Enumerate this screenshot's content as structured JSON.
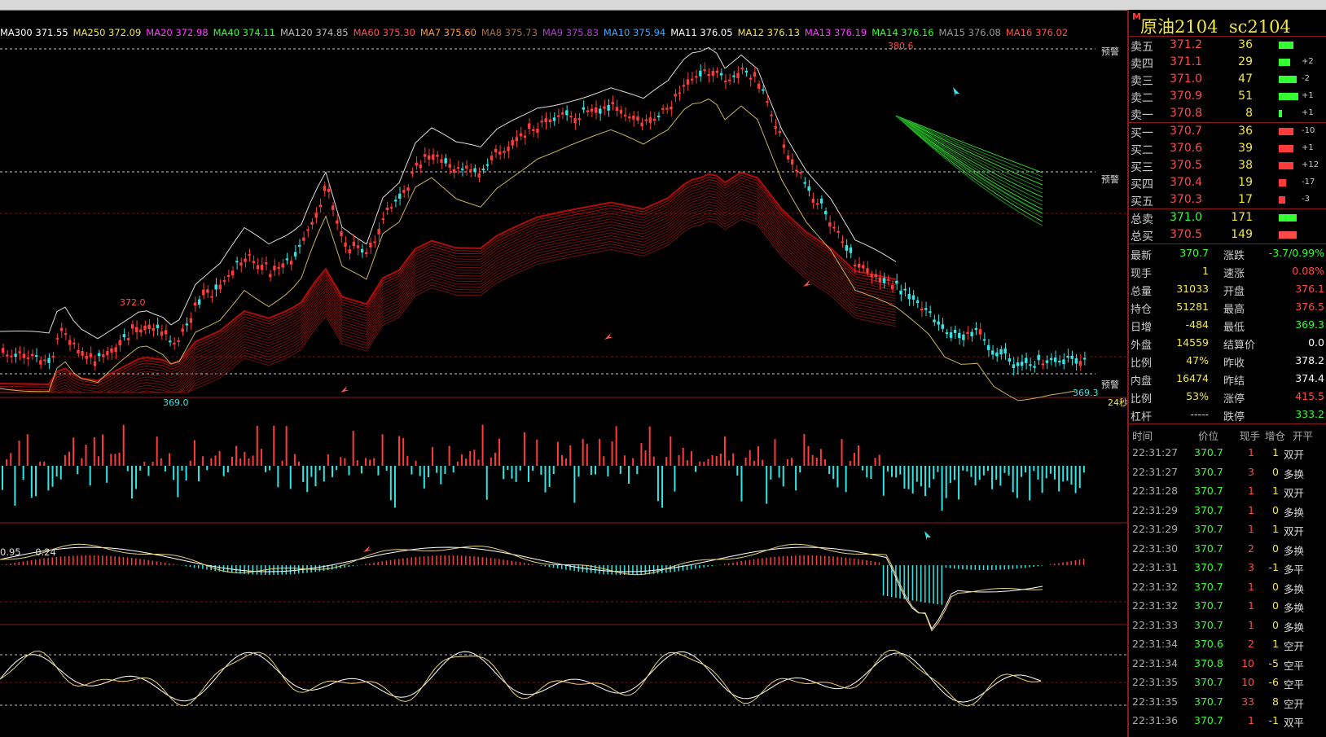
{
  "instrument": {
    "marker": "M",
    "name": "原油2104",
    "code": "sc2104"
  },
  "ma_legend": [
    {
      "label": "MA300",
      "value": "371.55",
      "color": "#ffffff"
    },
    {
      "label": "MA250",
      "value": "372.09",
      "color": "#f4e842"
    },
    {
      "label": "MA20",
      "value": "372.98",
      "color": "#ff3bff"
    },
    {
      "label": "MA40",
      "value": "374.11",
      "color": "#33ff33"
    },
    {
      "label": "MA120",
      "value": "374.85",
      "color": "#bbbbbb"
    },
    {
      "label": "MA60",
      "value": "375.30",
      "color": "#ff5050"
    },
    {
      "label": "MA7",
      "value": "375.60",
      "color": "#ff9933"
    },
    {
      "label": "MA8",
      "value": "375.73",
      "color": "#a07040"
    },
    {
      "label": "MA9",
      "value": "375.83",
      "color": "#b040d0"
    },
    {
      "label": "MA10",
      "value": "375.94",
      "color": "#33aaff"
    },
    {
      "label": "MA11",
      "value": "376.05",
      "color": "#ffffff"
    },
    {
      "label": "MA12",
      "value": "376.13",
      "color": "#f4e842"
    },
    {
      "label": "MA13",
      "value": "376.19",
      "color": "#ff3bff"
    },
    {
      "label": "MA14",
      "value": "376.16",
      "color": "#33ff33"
    },
    {
      "label": "MA15",
      "value": "376.08",
      "color": "#999999"
    },
    {
      "label": "MA16",
      "value": "376.02",
      "color": "#ff5050"
    }
  ],
  "price_marks": {
    "high": "380.6",
    "low_left": "369.0",
    "peak_left": "372.0",
    "last_low": "369.3"
  },
  "alert_label": "预警",
  "timer_label": "24秒",
  "macd_values": [
    "0.95",
    "0.24"
  ],
  "orderbook": {
    "asks": [
      {
        "label": "卖五",
        "price": "371.2",
        "vol": "36",
        "delta": "",
        "bar": 18
      },
      {
        "label": "卖四",
        "price": "371.1",
        "vol": "29",
        "delta": "+2",
        "bar": 14
      },
      {
        "label": "卖三",
        "price": "371.0",
        "vol": "47",
        "delta": "-2",
        "bar": 22
      },
      {
        "label": "卖二",
        "price": "370.9",
        "vol": "51",
        "delta": "+1",
        "bar": 24
      },
      {
        "label": "卖一",
        "price": "370.8",
        "vol": "8",
        "delta": "+1",
        "bar": 4
      }
    ],
    "bids": [
      {
        "label": "买一",
        "price": "370.7",
        "vol": "36",
        "delta": "-10",
        "bar": 18
      },
      {
        "label": "买二",
        "price": "370.6",
        "vol": "39",
        "delta": "+1",
        "bar": 18
      },
      {
        "label": "买三",
        "price": "370.5",
        "vol": "38",
        "delta": "+12",
        "bar": 18
      },
      {
        "label": "买四",
        "price": "370.4",
        "vol": "19",
        "delta": "-17",
        "bar": 9
      },
      {
        "label": "买五",
        "price": "370.3",
        "vol": "17",
        "delta": "-3",
        "bar": 8
      }
    ],
    "totals": [
      {
        "label": "总卖",
        "price": "371.0",
        "vol": "171",
        "color": "#33ff33"
      },
      {
        "label": "总买",
        "price": "370.5",
        "vol": "149",
        "color": "#ff4a4a"
      }
    ]
  },
  "stats": [
    {
      "k1": "最新",
      "v1": "370.7",
      "c1": "#33ff33",
      "k2": "涨跌",
      "v2": "-3.7/0.99%",
      "c2": "#33ff33"
    },
    {
      "k1": "现手",
      "v1": "1",
      "c1": "#f4e842",
      "k2": "速涨",
      "v2": "0.08%",
      "c2": "#ff4a4a"
    },
    {
      "k1": "总量",
      "v1": "31033",
      "c1": "#f4e842",
      "k2": "开盘",
      "v2": "376.1",
      "c2": "#ff4a4a"
    },
    {
      "k1": "持仓",
      "v1": "51281",
      "c1": "#f4e842",
      "k2": "最高",
      "v2": "376.5",
      "c2": "#ff4a4a"
    },
    {
      "k1": "日增",
      "v1": "-484",
      "c1": "#f4e842",
      "k2": "最低",
      "v2": "369.3",
      "c2": "#33ff33"
    },
    {
      "k1": "外盘",
      "v1": "14559",
      "c1": "#f4e842",
      "k2": "结算价",
      "v2": "0.0",
      "c2": "#ffffff"
    },
    {
      "k1": "比例",
      "v1": "47%",
      "c1": "#f4e842",
      "k2": "昨收",
      "v2": "378.2",
      "c2": "#ffffff"
    },
    {
      "k1": "内盘",
      "v1": "16474",
      "c1": "#f4e842",
      "k2": "昨结",
      "v2": "374.4",
      "c2": "#ffffff"
    },
    {
      "k1": "比例",
      "v1": "53%",
      "c1": "#f4e842",
      "k2": "涨停",
      "v2": "415.5",
      "c2": "#ff4a4a"
    },
    {
      "k1": "杠杆",
      "v1": "-----",
      "c1": "#f4e842",
      "k2": "跌停",
      "v2": "333.2",
      "c2": "#33ff33"
    }
  ],
  "trade_header": {
    "time": "时间",
    "price": "价位",
    "qty": "现手",
    "oi": "增仓",
    "type": "开平"
  },
  "trades": [
    {
      "time": "22:31:27",
      "price": "370.7",
      "qty": "1",
      "oi": "1",
      "type": "双开"
    },
    {
      "time": "22:31:27",
      "price": "370.7",
      "qty": "3",
      "oi": "0",
      "type": "多换"
    },
    {
      "time": "22:31:28",
      "price": "370.7",
      "qty": "1",
      "oi": "1",
      "type": "双开"
    },
    {
      "time": "22:31:29",
      "price": "370.7",
      "qty": "1",
      "oi": "0",
      "type": "多换"
    },
    {
      "time": "22:31:29",
      "price": "370.7",
      "qty": "1",
      "oi": "1",
      "type": "双开"
    },
    {
      "time": "22:31:30",
      "price": "370.7",
      "qty": "2",
      "oi": "0",
      "type": "多换"
    },
    {
      "time": "22:31:31",
      "price": "370.7",
      "qty": "3",
      "oi": "-1",
      "type": "多平"
    },
    {
      "time": "22:31:32",
      "price": "370.7",
      "qty": "1",
      "oi": "0",
      "type": "多换"
    },
    {
      "time": "22:31:32",
      "price": "370.7",
      "qty": "1",
      "oi": "0",
      "type": "多换"
    },
    {
      "time": "22:31:33",
      "price": "370.7",
      "qty": "1",
      "oi": "0",
      "type": "多换"
    },
    {
      "time": "22:31:34",
      "price": "370.6",
      "qty": "2",
      "oi": "1",
      "type": "空开"
    },
    {
      "time": "22:31:34",
      "price": "370.8",
      "qty": "10",
      "oi": "-5",
      "type": "空平"
    },
    {
      "time": "22:31:35",
      "price": "370.7",
      "qty": "10",
      "oi": "-6",
      "type": "空平"
    },
    {
      "time": "22:31:35",
      "price": "370.7",
      "qty": "33",
      "oi": "8",
      "type": "空开"
    },
    {
      "time": "22:31:36",
      "price": "370.7",
      "qty": "1",
      "oi": "-1",
      "type": "双平"
    }
  ],
  "colors": {
    "up": "#ff3b3b",
    "down": "#33e6e6",
    "panel_border": "#8a1a1a",
    "label_yellow": "#f4e842",
    "green": "#33ff33"
  }
}
